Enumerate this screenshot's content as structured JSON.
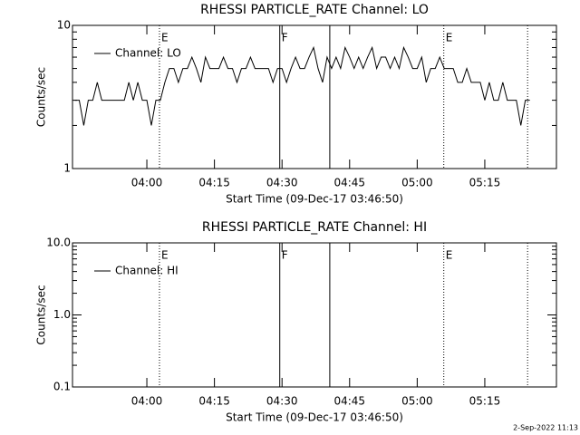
{
  "chart_data": [
    {
      "type": "line",
      "title": "RHESSI PARTICLE_RATE Channel: LO",
      "xlabel": "Start Time (09-Dec-17 03:46:50)",
      "ylabel": "Counts/sec",
      "log_y": true,
      "ylim": [
        1,
        10
      ],
      "yticks": [
        1,
        10
      ],
      "xlim": [
        223.5,
        330.9
      ],
      "xticks": [
        {
          "value": 240,
          "label": "04:00"
        },
        {
          "value": 255,
          "label": "04:15"
        },
        {
          "value": 270,
          "label": "04:30"
        },
        {
          "value": 285,
          "label": "04:45"
        },
        {
          "value": 300,
          "label": "05:00"
        },
        {
          "value": 315,
          "label": "05:15"
        }
      ],
      "legend": "upper left",
      "markers": [
        {
          "x": 242.8,
          "style": "dotted",
          "label": "E"
        },
        {
          "x": 269.5,
          "style": "solid",
          "label": "F"
        },
        {
          "x": 280.6,
          "style": "solid"
        },
        {
          "x": 305.9,
          "style": "dotted",
          "label": "E"
        },
        {
          "x": 324.5,
          "style": "dotted"
        }
      ],
      "x": [
        224,
        225,
        226,
        227,
        228,
        229,
        230,
        231,
        232,
        233,
        234,
        235,
        236,
        237,
        238,
        239,
        240,
        241,
        242,
        243,
        244,
        245,
        246,
        247,
        248,
        249,
        250,
        251,
        252,
        253,
        254,
        255,
        256,
        257,
        258,
        259,
        260,
        261,
        262,
        263,
        264,
        265,
        266,
        267,
        268,
        269,
        270,
        271,
        272,
        273,
        274,
        275,
        276,
        277,
        278,
        279,
        280,
        281,
        282,
        283,
        284,
        285,
        286,
        287,
        288,
        289,
        290,
        291,
        292,
        293,
        294,
        295,
        296,
        297,
        298,
        299,
        300,
        301,
        302,
        303,
        304,
        305,
        306,
        307,
        308,
        309,
        310,
        311,
        312,
        313,
        314,
        315,
        316,
        317,
        318,
        319,
        320,
        321,
        322,
        323,
        324,
        325
      ],
      "series": [
        {
          "name": "Channel: LO",
          "color": "#000000",
          "values": [
            3,
            3,
            2,
            3,
            3,
            4,
            3,
            3,
            3,
            3,
            3,
            3,
            4,
            3,
            4,
            3,
            3,
            2,
            3,
            3,
            4,
            5,
            5,
            4,
            5,
            5,
            6,
            5,
            4,
            6,
            5,
            5,
            5,
            6,
            5,
            5,
            4,
            5,
            5,
            6,
            5,
            5,
            5,
            5,
            4,
            5,
            5,
            4,
            5,
            6,
            5,
            5,
            6,
            7,
            5,
            4,
            6,
            5,
            6,
            5,
            7,
            6,
            5,
            6,
            5,
            6,
            7,
            5,
            6,
            6,
            5,
            6,
            5,
            7,
            6,
            5,
            5,
            6,
            4,
            5,
            5,
            6,
            5,
            5,
            5,
            4,
            4,
            5,
            4,
            4,
            4,
            3,
            4,
            3,
            3,
            4,
            3,
            3,
            3,
            2,
            3,
            3
          ]
        }
      ]
    },
    {
      "type": "line",
      "title": "RHESSI PARTICLE_RATE Channel: HI",
      "xlabel": "Start Time (09-Dec-17 03:46:50)",
      "ylabel": "Counts/sec",
      "log_y": true,
      "ylim": [
        0.1,
        10
      ],
      "yticks": [
        {
          "value": 0.1,
          "label": "0.1"
        },
        {
          "value": 1,
          "label": "1.0"
        },
        {
          "value": 10,
          "label": "10.0"
        }
      ],
      "xlim": [
        223.5,
        330.9
      ],
      "xticks": [
        {
          "value": 240,
          "label": "04:00"
        },
        {
          "value": 255,
          "label": "04:15"
        },
        {
          "value": 270,
          "label": "04:30"
        },
        {
          "value": 285,
          "label": "04:45"
        },
        {
          "value": 300,
          "label": "05:00"
        },
        {
          "value": 315,
          "label": "05:15"
        }
      ],
      "legend": "upper left",
      "markers": [
        {
          "x": 242.8,
          "style": "dotted",
          "label": "E"
        },
        {
          "x": 269.5,
          "style": "solid",
          "label": "F"
        },
        {
          "x": 280.6,
          "style": "solid"
        },
        {
          "x": 305.9,
          "style": "dotted",
          "label": "E"
        },
        {
          "x": 324.5,
          "style": "dotted"
        }
      ],
      "x": [],
      "series": [
        {
          "name": "Channel: HI",
          "color": "#000000",
          "values": []
        }
      ]
    }
  ],
  "footer": "2-Sep-2022 11:13"
}
